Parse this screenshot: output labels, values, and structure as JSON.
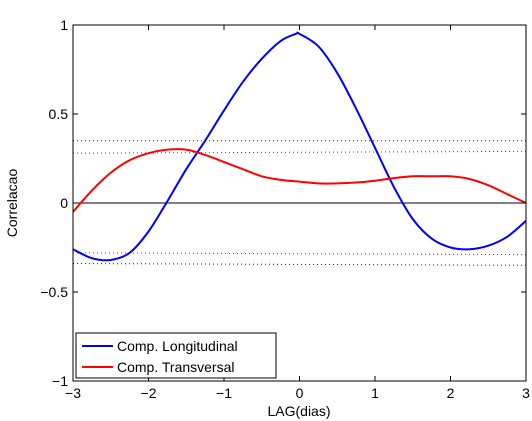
{
  "chart_data": {
    "type": "line",
    "title": "",
    "xlabel": "LAG(dias)",
    "ylabel": "Correlacao",
    "xlim": [
      -3,
      3
    ],
    "ylim": [
      -1,
      1
    ],
    "xticks": [
      -3,
      -2,
      -1,
      0,
      1,
      2,
      3
    ],
    "xtick_labels": [
      "−3",
      "−2",
      "−1",
      "0",
      "1",
      "2",
      "3"
    ],
    "yticks": [
      -1,
      -0.5,
      0,
      0.5,
      1
    ],
    "ytick_labels": [
      "−1",
      "−0.5",
      "0",
      "0.5",
      "1"
    ],
    "grid": false,
    "legend_position": "bottom-left",
    "zero_line": {
      "y": 0,
      "color": "#000000"
    },
    "series": [
      {
        "name": "Comp. Longitudinal",
        "color": "#0000ff",
        "style": "solid",
        "x": [
          -3.0,
          -2.75,
          -2.5,
          -2.25,
          -2.0,
          -1.75,
          -1.5,
          -1.25,
          -1.0,
          -0.75,
          -0.5,
          -0.25,
          -0.05,
          0.0,
          0.25,
          0.5,
          0.75,
          1.0,
          1.25,
          1.5,
          1.75,
          2.0,
          2.25,
          2.5,
          2.75,
          3.0
        ],
        "y": [
          -0.26,
          -0.31,
          -0.32,
          -0.28,
          -0.16,
          0.01,
          0.19,
          0.35,
          0.52,
          0.68,
          0.81,
          0.91,
          0.95,
          0.95,
          0.88,
          0.73,
          0.53,
          0.31,
          0.09,
          -0.09,
          -0.2,
          -0.25,
          -0.26,
          -0.24,
          -0.19,
          -0.1
        ]
      },
      {
        "name": "Comp. Transversal",
        "color": "#ff0000",
        "style": "solid",
        "x": [
          -3.0,
          -2.75,
          -2.5,
          -2.25,
          -2.0,
          -1.75,
          -1.5,
          -1.25,
          -1.0,
          -0.75,
          -0.5,
          -0.25,
          0.0,
          0.25,
          0.5,
          0.75,
          1.0,
          1.25,
          1.5,
          1.75,
          2.0,
          2.25,
          2.5,
          2.75,
          3.0
        ],
        "y": [
          -0.05,
          0.07,
          0.17,
          0.24,
          0.28,
          0.3,
          0.3,
          0.27,
          0.23,
          0.19,
          0.15,
          0.13,
          0.12,
          0.11,
          0.11,
          0.115,
          0.125,
          0.14,
          0.15,
          0.15,
          0.15,
          0.135,
          0.1,
          0.05,
          0.0
        ]
      }
    ],
    "confidence_lines": [
      {
        "color": "#0000ff",
        "style": "dotted",
        "x": [
          -3,
          3
        ],
        "y": [
          0.35,
          0.35
        ]
      },
      {
        "color": "#ff0000",
        "style": "dotted",
        "x": [
          -3,
          3
        ],
        "y": [
          0.28,
          0.29
        ]
      },
      {
        "color": "#ff0000",
        "style": "dotted",
        "x": [
          -3,
          3
        ],
        "y": [
          -0.28,
          -0.29
        ]
      },
      {
        "color": "#0000ff",
        "style": "dotted",
        "x": [
          -3,
          3
        ],
        "y": [
          -0.34,
          -0.35
        ]
      }
    ],
    "legend": [
      {
        "label": "Comp. Longitudinal",
        "color": "#0000ff"
      },
      {
        "label": "Comp. Transversal",
        "color": "#ff0000"
      }
    ]
  }
}
